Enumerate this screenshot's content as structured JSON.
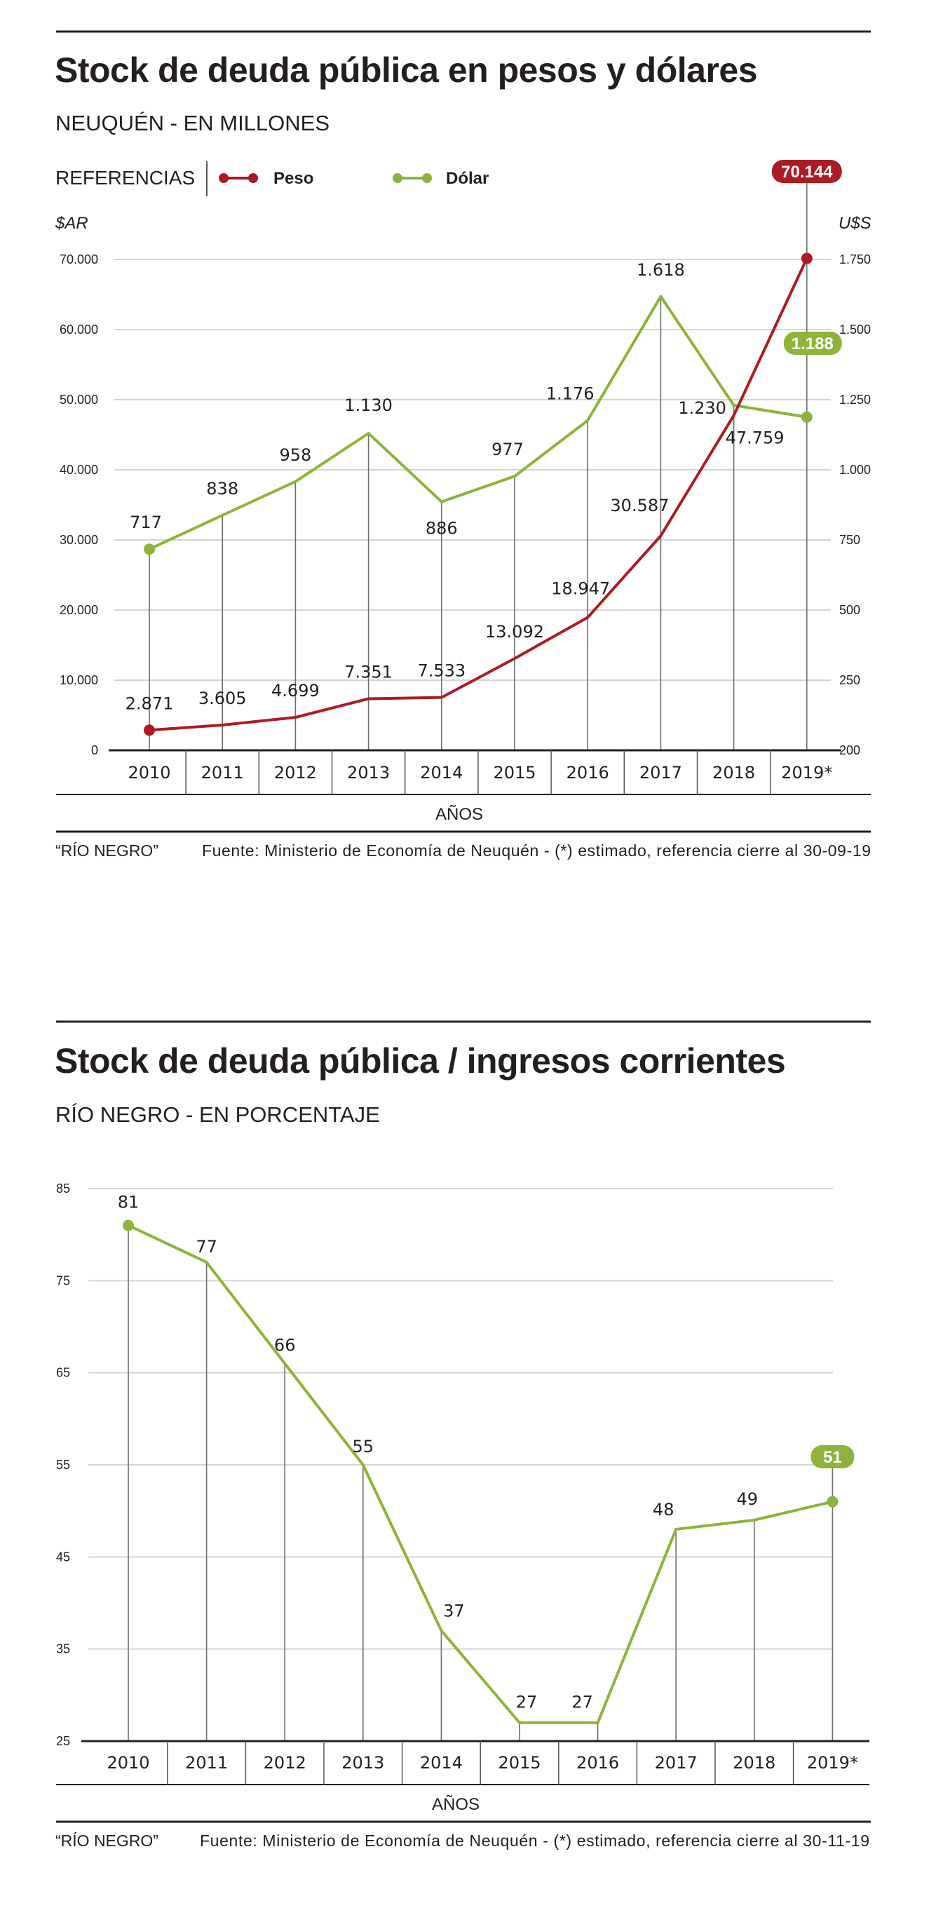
{
  "chart_data": [
    {
      "type": "line",
      "title": "Stock de deuda pública en pesos y dólares",
      "subtitle": "NEUQUÉN - EN MILLONES",
      "legend_title": "REFERENCIAS",
      "legend_placement": "top-left",
      "xlabel": "AÑOS",
      "ylabel_left": "$AR",
      "ylabel_right": "U$S",
      "categories": [
        "2010",
        "2011",
        "2012",
        "2013",
        "2014",
        "2015",
        "2016",
        "2017",
        "2018",
        "2019*"
      ],
      "y_left_ticks": [
        {
          "value": 0,
          "label": "0"
        },
        {
          "value": 10000,
          "label": "10.000"
        },
        {
          "value": 20000,
          "label": "20.000"
        },
        {
          "value": 30000,
          "label": "30.000"
        },
        {
          "value": 40000,
          "label": "40.000"
        },
        {
          "value": 50000,
          "label": "50.000"
        },
        {
          "value": 60000,
          "label": "60.000"
        },
        {
          "value": 70000,
          "label": "70.000"
        }
      ],
      "y_right_ticks": [
        {
          "value": 200,
          "label": "200"
        },
        {
          "value": 250,
          "label": "250"
        },
        {
          "value": 500,
          "label": "500"
        },
        {
          "value": 750,
          "label": "750"
        },
        {
          "value": 1000,
          "label": "1.000"
        },
        {
          "value": 1250,
          "label": "1.250"
        },
        {
          "value": 1500,
          "label": "1.500"
        },
        {
          "value": 1750,
          "label": "1.750"
        }
      ],
      "ylim_left": [
        0,
        70000
      ],
      "ylim_right": [
        0,
        1750
      ],
      "grid": true,
      "series": [
        {
          "name": "Peso",
          "axis": "left",
          "color": "#ac1b23",
          "values": [
            2871,
            3605,
            4699,
            7351,
            7533,
            13092,
            18947,
            30587,
            47759,
            70144
          ],
          "labels": [
            "2.871",
            "3.605",
            "4.699",
            "7.351",
            "7.533",
            "13.092",
            "18.947",
            "30.587",
            "47.759",
            "70.144"
          ],
          "highlight_last": true
        },
        {
          "name": "Dólar",
          "axis": "right",
          "color": "#8db33a",
          "values": [
            717,
            838,
            958,
            1130,
            886,
            977,
            1176,
            1618,
            1230,
            1188
          ],
          "labels": [
            "717",
            "838",
            "958",
            "1.130",
            "886",
            "977",
            "1.176",
            "1.618",
            "1.230",
            "1.188"
          ],
          "highlight_last": true
        }
      ],
      "credit": "“RÍO NEGRO”",
      "source": "Fuente: Ministerio de Economía de Neuquén - (*) estimado, referencia cierre al 30-09-19"
    },
    {
      "type": "line",
      "title": "Stock de deuda pública / ingresos corrientes",
      "subtitle": "RÍO NEGRO - EN PORCENTAJE",
      "xlabel": "AÑOS",
      "categories": [
        "2010",
        "2011",
        "2012",
        "2013",
        "2014",
        "2015",
        "2016",
        "2017",
        "2018",
        "2019*"
      ],
      "y_ticks": [
        {
          "value": 25,
          "label": "25"
        },
        {
          "value": 35,
          "label": "35"
        },
        {
          "value": 45,
          "label": "45"
        },
        {
          "value": 55,
          "label": "55"
        },
        {
          "value": 65,
          "label": "65"
        },
        {
          "value": 75,
          "label": "75"
        },
        {
          "value": 85,
          "label": "85"
        }
      ],
      "ylim": [
        25,
        85
      ],
      "grid": true,
      "series": [
        {
          "name": "Deuda / ingresos corrientes",
          "color": "#8db33a",
          "values": [
            81,
            77,
            66,
            55,
            37,
            27,
            27,
            48,
            49,
            51
          ],
          "labels": [
            "81",
            "77",
            "66",
            "55",
            "37",
            "27",
            "27",
            "48",
            "49",
            "51"
          ],
          "highlight_last": true
        }
      ],
      "credit": "“RÍO NEGRO”",
      "source": "Fuente: Ministerio de Economía de Neuquén - (*) estimado, referencia cierre al 30-11-19"
    }
  ]
}
